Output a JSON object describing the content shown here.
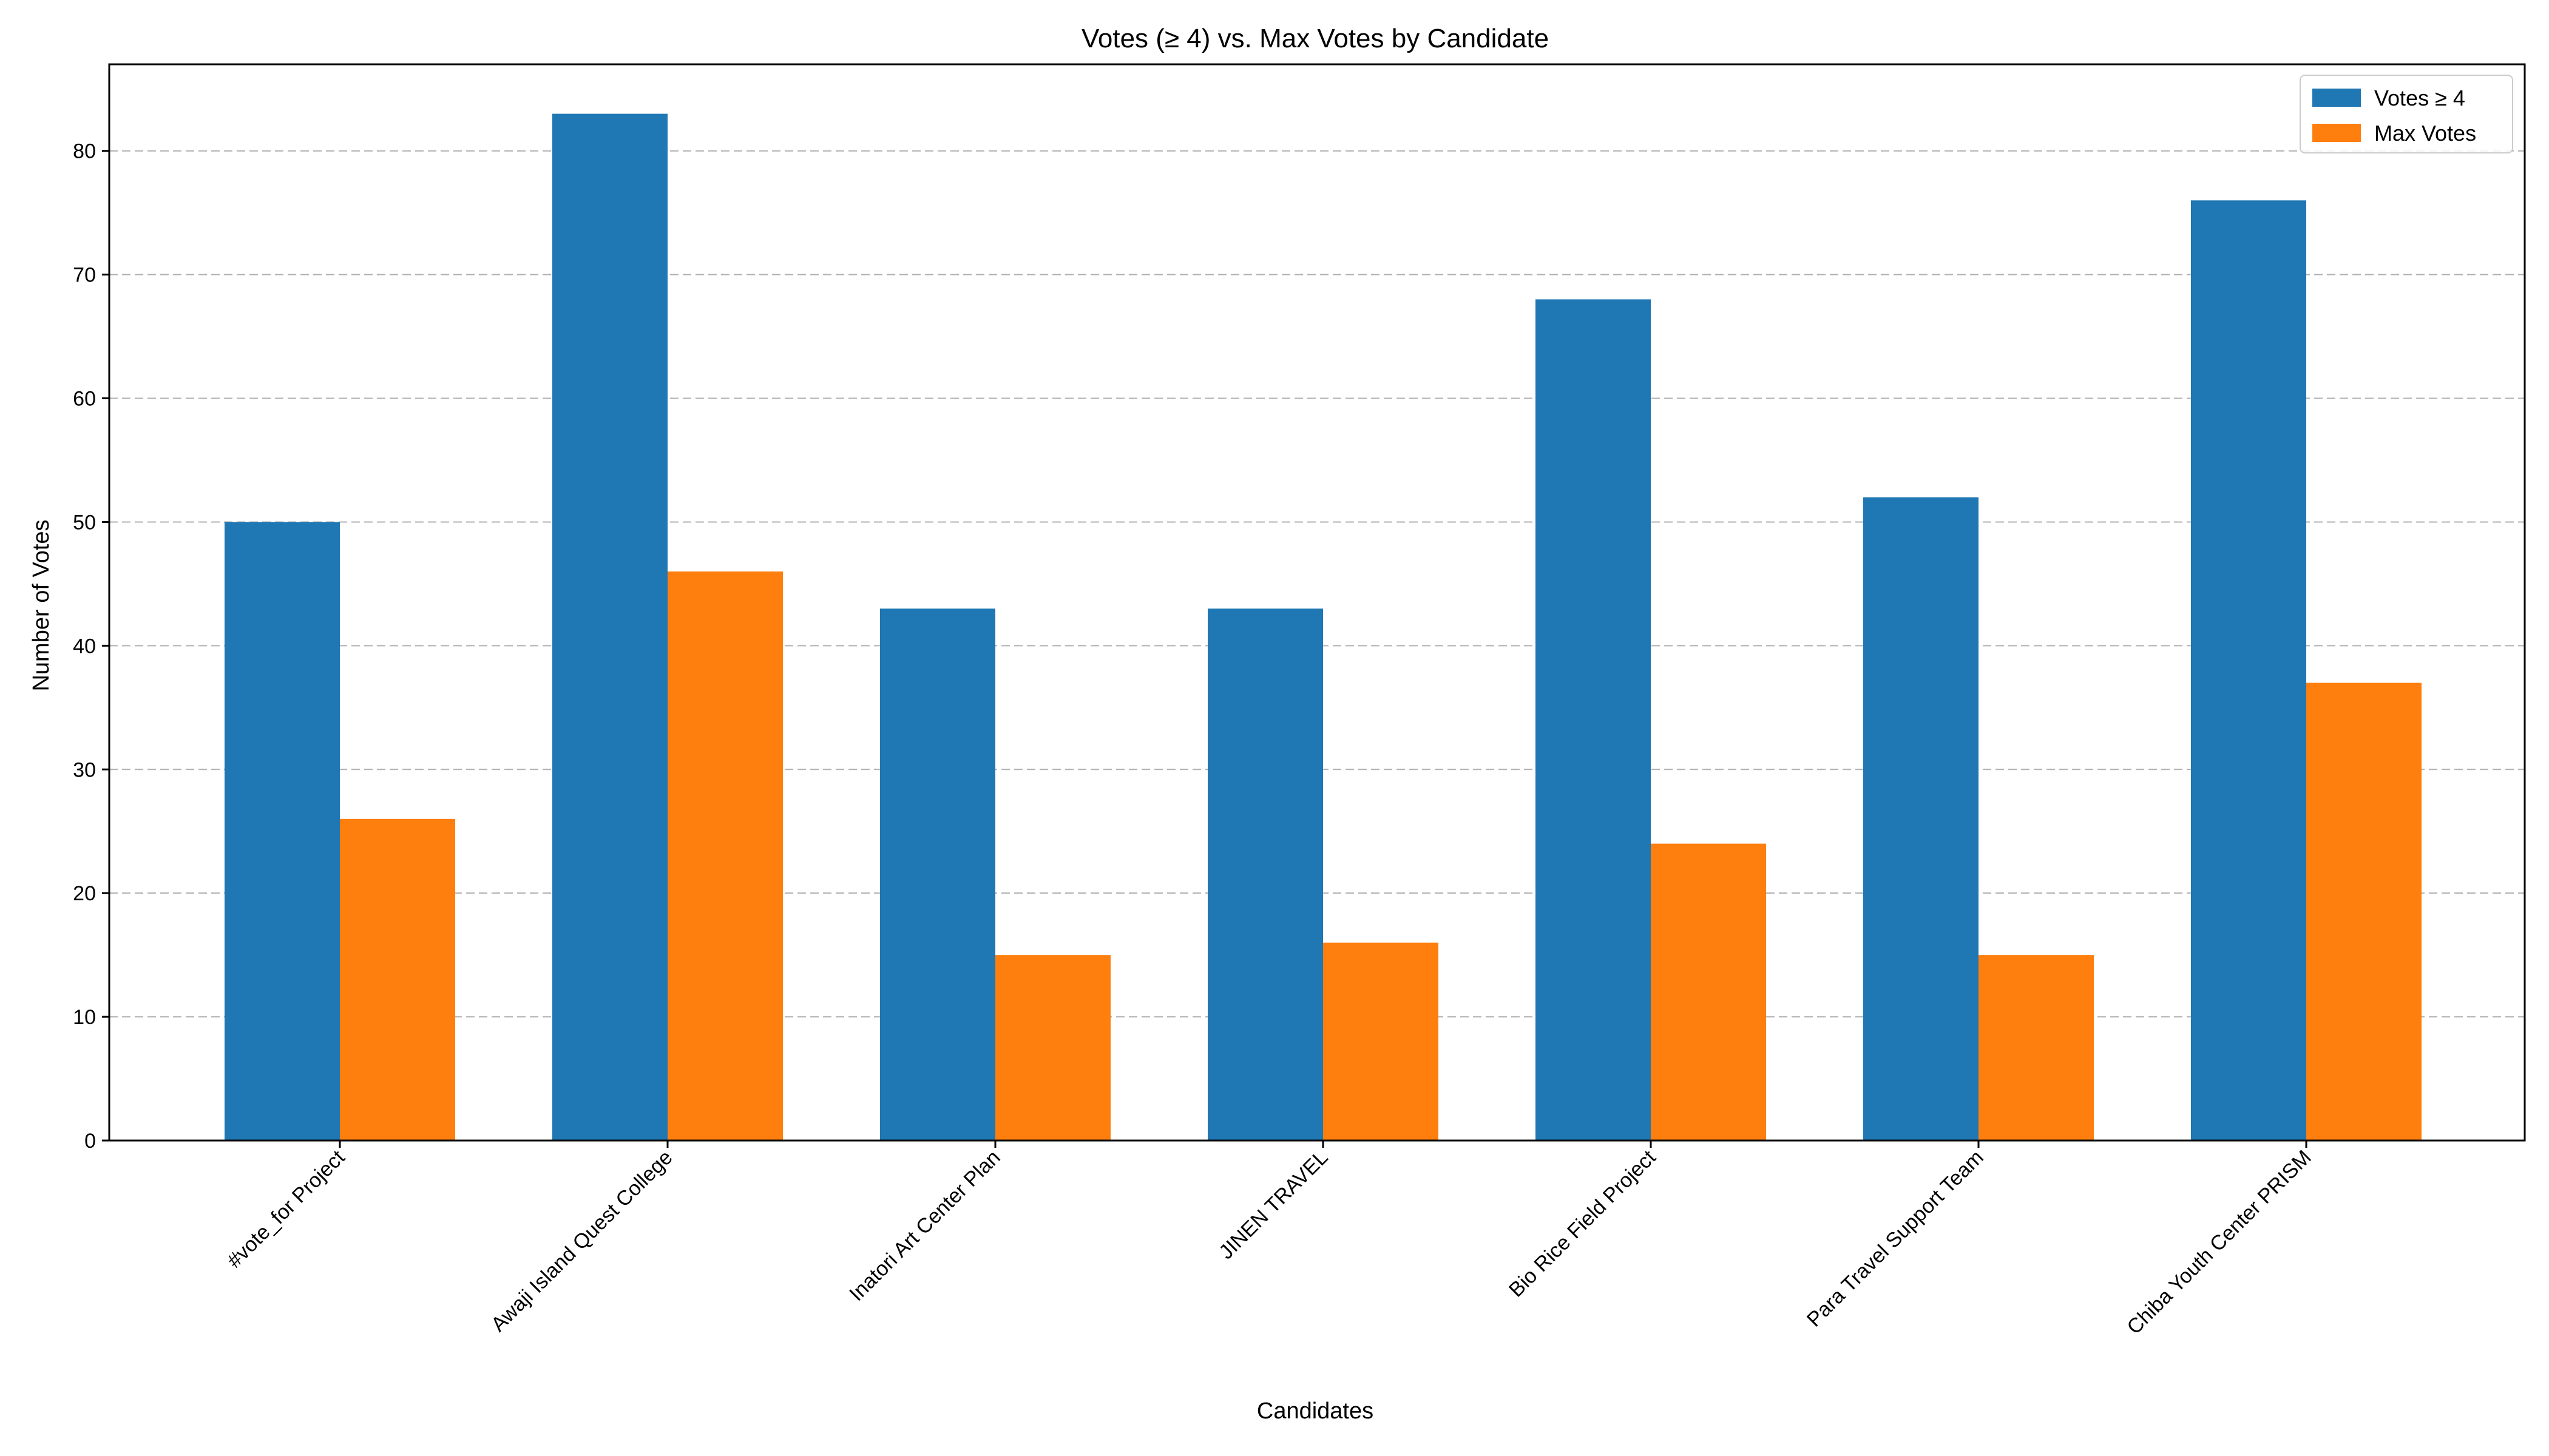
{
  "chart_data": {
    "type": "bar",
    "title": "Votes (≥ 4) vs. Max Votes by Candidate",
    "xlabel": "Candidates",
    "ylabel": "Number of Votes",
    "ylim": [
      0,
      87
    ],
    "yticks": [
      0,
      10,
      20,
      30,
      40,
      50,
      60,
      70,
      80
    ],
    "grid": "y-dashed",
    "legend_position": "top-right",
    "categories": [
      "#vote_for Project",
      "Awaji Island Quest College",
      "Inatori Art Center Plan",
      "JINEN TRAVEL",
      "Bio Rice Field Project",
      "Para Travel Support Team",
      "Chiba Youth Center PRISM"
    ],
    "series": [
      {
        "name": "Votes ≥ 4",
        "color": "#1f77b4",
        "values": [
          50,
          83,
          43,
          43,
          68,
          52,
          76
        ]
      },
      {
        "name": "Max Votes",
        "color": "#ff7f0e",
        "values": [
          26,
          46,
          15,
          16,
          24,
          15,
          37
        ]
      }
    ]
  }
}
